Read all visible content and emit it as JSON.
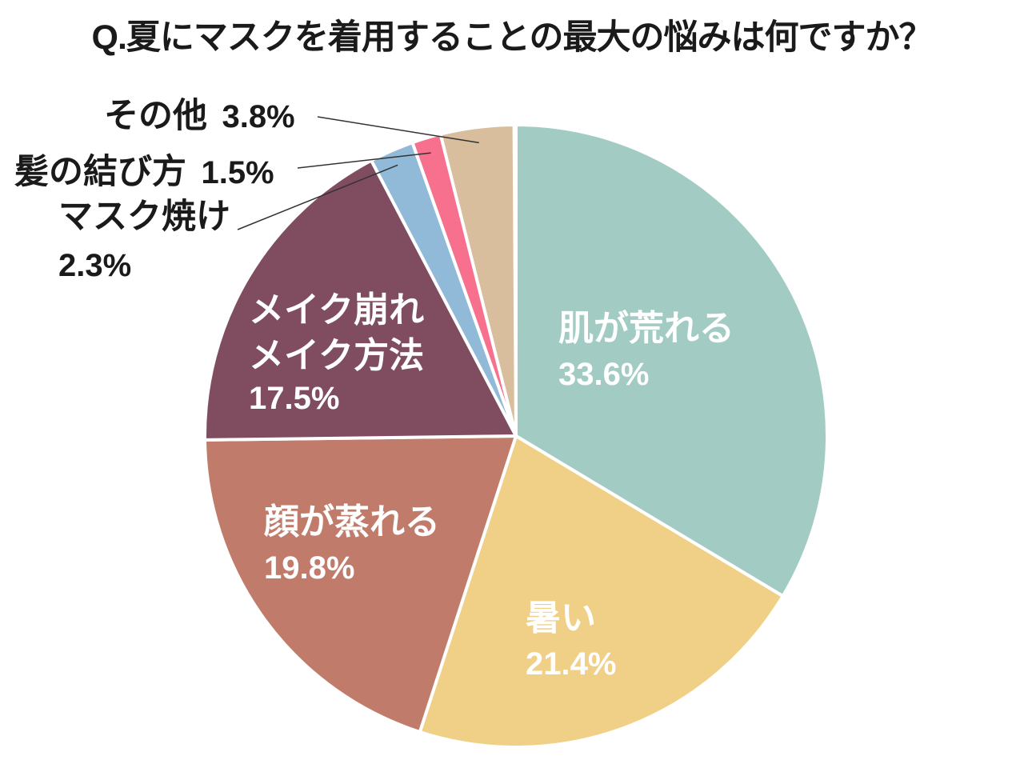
{
  "title": "Q.夏にマスクを着用することの最大の悩みは何ですか？",
  "chart_data": {
    "type": "pie",
    "title": "Q.夏にマスクを着用することの最大の悩みは何ですか？",
    "start_angle_deg": 0,
    "direction": "clockwise",
    "total_pct": 99.9,
    "background": "#FFFFFF",
    "stroke_color": "#FFFFFF",
    "leader_line_color": "#333333",
    "legend": "none",
    "slices": [
      {
        "key": "skin-trouble",
        "label": "肌が荒れる",
        "value_pct": 33.6,
        "pct_label": "33.6%",
        "color": "#A2CCC3",
        "label_placement": "inside",
        "label_color": "#FFFFFF"
      },
      {
        "key": "hot",
        "label": "暑い",
        "value_pct": 21.4,
        "pct_label": "21.4%",
        "color": "#F0D086",
        "label_placement": "inside",
        "label_color": "#FFFFFF"
      },
      {
        "key": "face-steams",
        "label": "顔が蒸れる",
        "value_pct": 19.8,
        "pct_label": "19.8%",
        "color": "#C17B6B",
        "label_placement": "inside",
        "label_color": "#FFFFFF"
      },
      {
        "key": "makeup",
        "label": "メイク崩れ",
        "label2": "メイク方法",
        "value_pct": 17.5,
        "pct_label": "17.5%",
        "color": "#804D60",
        "label_placement": "inside",
        "label_color": "#FFFFFF"
      },
      {
        "key": "mask-tan",
        "label": "マスク焼け",
        "value_pct": 2.3,
        "pct_label": "2.3%",
        "color": "#91BAD8",
        "label_placement": "callout",
        "label_color": "#1A1A1A"
      },
      {
        "key": "hair-tying",
        "label": "髪の結び方",
        "value_pct": 1.5,
        "pct_label": "1.5%",
        "color": "#F7708D",
        "label_placement": "callout",
        "label_color": "#1A1A1A"
      },
      {
        "key": "other",
        "label": "その他",
        "value_pct": 3.8,
        "pct_label": "3.8%",
        "color": "#D8BE9D",
        "label_placement": "callout",
        "label_color": "#1A1A1A"
      }
    ]
  }
}
